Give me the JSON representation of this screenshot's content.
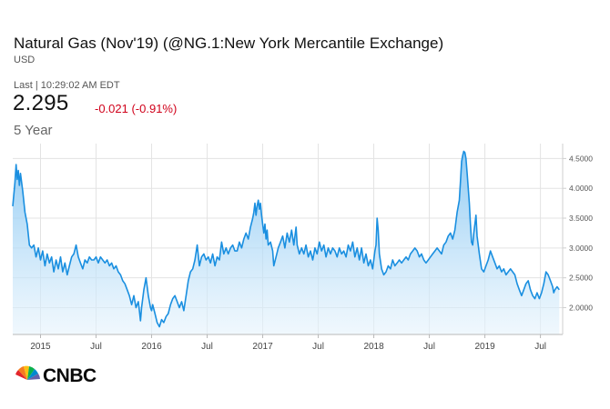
{
  "header": {
    "title": "Natural Gas (Nov'19) (@NG.1:New York Mercantile Exchange)",
    "currency": "USD",
    "last_label": "Last | 10:29:02 AM EDT",
    "price": "2.295",
    "change": "-0.021 (-0.91%)",
    "range": "5 Year"
  },
  "colors": {
    "line": "#1a8fe0",
    "change_negative": "#d0021b",
    "grid": "#e3e3e3"
  },
  "chart_data": {
    "type": "area",
    "title": "",
    "xlabel": "",
    "ylabel": "",
    "x_ticks": [
      {
        "t": 0.25,
        "label": "2015"
      },
      {
        "t": 0.75,
        "label": "Jul"
      },
      {
        "t": 1.25,
        "label": "2016"
      },
      {
        "t": 1.75,
        "label": "Jul"
      },
      {
        "t": 2.25,
        "label": "2017"
      },
      {
        "t": 2.75,
        "label": "Jul"
      },
      {
        "t": 3.25,
        "label": "2018"
      },
      {
        "t": 3.75,
        "label": "Jul"
      },
      {
        "t": 4.25,
        "label": "2019"
      },
      {
        "t": 4.75,
        "label": "Jul"
      }
    ],
    "y_ticks": [
      "2.0000",
      "2.5000",
      "3.0000",
      "3.5000",
      "4.0000",
      "4.5000"
    ],
    "ylim": [
      1.55,
      4.75
    ],
    "xlim": [
      0,
      4.95
    ],
    "grid": true,
    "series": [
      {
        "values": [
          [
            0.0,
            3.7
          ],
          [
            0.02,
            4.1
          ],
          [
            0.03,
            4.4
          ],
          [
            0.04,
            4.15
          ],
          [
            0.05,
            4.3
          ],
          [
            0.06,
            4.05
          ],
          [
            0.07,
            4.25
          ],
          [
            0.09,
            3.95
          ],
          [
            0.11,
            3.6
          ],
          [
            0.13,
            3.4
          ],
          [
            0.15,
            3.05
          ],
          [
            0.17,
            3.0
          ],
          [
            0.19,
            3.05
          ],
          [
            0.21,
            2.85
          ],
          [
            0.23,
            3.0
          ],
          [
            0.25,
            2.8
          ],
          [
            0.27,
            2.95
          ],
          [
            0.29,
            2.7
          ],
          [
            0.31,
            2.9
          ],
          [
            0.33,
            2.75
          ],
          [
            0.35,
            2.85
          ],
          [
            0.37,
            2.6
          ],
          [
            0.39,
            2.8
          ],
          [
            0.41,
            2.65
          ],
          [
            0.43,
            2.85
          ],
          [
            0.45,
            2.6
          ],
          [
            0.47,
            2.75
          ],
          [
            0.49,
            2.55
          ],
          [
            0.51,
            2.7
          ],
          [
            0.53,
            2.85
          ],
          [
            0.55,
            2.9
          ],
          [
            0.57,
            3.05
          ],
          [
            0.59,
            2.85
          ],
          [
            0.61,
            2.75
          ],
          [
            0.63,
            2.65
          ],
          [
            0.65,
            2.8
          ],
          [
            0.67,
            2.75
          ],
          [
            0.69,
            2.85
          ],
          [
            0.71,
            2.8
          ],
          [
            0.73,
            2.8
          ],
          [
            0.75,
            2.85
          ],
          [
            0.77,
            2.75
          ],
          [
            0.79,
            2.85
          ],
          [
            0.81,
            2.8
          ],
          [
            0.83,
            2.75
          ],
          [
            0.85,
            2.8
          ],
          [
            0.87,
            2.7
          ],
          [
            0.89,
            2.75
          ],
          [
            0.91,
            2.65
          ],
          [
            0.93,
            2.7
          ],
          [
            0.95,
            2.6
          ],
          [
            0.97,
            2.55
          ],
          [
            0.99,
            2.45
          ],
          [
            1.01,
            2.4
          ],
          [
            1.03,
            2.3
          ],
          [
            1.05,
            2.2
          ],
          [
            1.07,
            2.05
          ],
          [
            1.09,
            2.2
          ],
          [
            1.11,
            2.0
          ],
          [
            1.13,
            2.1
          ],
          [
            1.14,
            1.95
          ],
          [
            1.15,
            1.78
          ],
          [
            1.16,
            2.0
          ],
          [
            1.18,
            2.3
          ],
          [
            1.2,
            2.5
          ],
          [
            1.22,
            2.2
          ],
          [
            1.24,
            2.0
          ],
          [
            1.25,
            1.95
          ],
          [
            1.26,
            2.05
          ],
          [
            1.28,
            1.9
          ],
          [
            1.3,
            1.75
          ],
          [
            1.32,
            1.68
          ],
          [
            1.34,
            1.8
          ],
          [
            1.36,
            1.75
          ],
          [
            1.38,
            1.85
          ],
          [
            1.4,
            1.9
          ],
          [
            1.42,
            2.05
          ],
          [
            1.44,
            2.15
          ],
          [
            1.46,
            2.2
          ],
          [
            1.48,
            2.1
          ],
          [
            1.5,
            2.0
          ],
          [
            1.52,
            2.1
          ],
          [
            1.54,
            1.95
          ],
          [
            1.56,
            2.2
          ],
          [
            1.58,
            2.45
          ],
          [
            1.6,
            2.6
          ],
          [
            1.62,
            2.65
          ],
          [
            1.64,
            2.8
          ],
          [
            1.66,
            3.05
          ],
          [
            1.68,
            2.7
          ],
          [
            1.7,
            2.85
          ],
          [
            1.72,
            2.9
          ],
          [
            1.74,
            2.8
          ],
          [
            1.76,
            2.85
          ],
          [
            1.78,
            2.75
          ],
          [
            1.8,
            2.9
          ],
          [
            1.82,
            2.7
          ],
          [
            1.84,
            2.85
          ],
          [
            1.86,
            2.8
          ],
          [
            1.88,
            3.1
          ],
          [
            1.9,
            2.9
          ],
          [
            1.92,
            3.0
          ],
          [
            1.94,
            2.9
          ],
          [
            1.96,
            3.0
          ],
          [
            1.98,
            3.05
          ],
          [
            2.0,
            2.95
          ],
          [
            2.02,
            2.95
          ],
          [
            2.04,
            3.1
          ],
          [
            2.06,
            3.0
          ],
          [
            2.08,
            3.15
          ],
          [
            2.1,
            3.25
          ],
          [
            2.12,
            3.15
          ],
          [
            2.14,
            3.35
          ],
          [
            2.16,
            3.5
          ],
          [
            2.17,
            3.6
          ],
          [
            2.18,
            3.75
          ],
          [
            2.19,
            3.55
          ],
          [
            2.2,
            3.7
          ],
          [
            2.21,
            3.8
          ],
          [
            2.22,
            3.65
          ],
          [
            2.23,
            3.75
          ],
          [
            2.24,
            3.55
          ],
          [
            2.25,
            3.4
          ],
          [
            2.26,
            3.25
          ],
          [
            2.27,
            3.4
          ],
          [
            2.28,
            3.15
          ],
          [
            2.29,
            3.3
          ],
          [
            2.3,
            3.05
          ],
          [
            2.32,
            3.1
          ],
          [
            2.34,
            2.95
          ],
          [
            2.35,
            2.7
          ],
          [
            2.37,
            2.85
          ],
          [
            2.39,
            3.0
          ],
          [
            2.41,
            3.1
          ],
          [
            2.43,
            3.2
          ],
          [
            2.45,
            3.0
          ],
          [
            2.47,
            3.25
          ],
          [
            2.49,
            3.1
          ],
          [
            2.51,
            3.3
          ],
          [
            2.53,
            3.05
          ],
          [
            2.55,
            3.35
          ],
          [
            2.56,
            3.05
          ],
          [
            2.58,
            2.9
          ],
          [
            2.6,
            3.0
          ],
          [
            2.62,
            2.9
          ],
          [
            2.64,
            3.05
          ],
          [
            2.66,
            2.85
          ],
          [
            2.68,
            2.95
          ],
          [
            2.7,
            2.8
          ],
          [
            2.72,
            3.0
          ],
          [
            2.74,
            2.9
          ],
          [
            2.76,
            3.1
          ],
          [
            2.78,
            2.95
          ],
          [
            2.8,
            3.05
          ],
          [
            2.82,
            2.85
          ],
          [
            2.84,
            3.0
          ],
          [
            2.86,
            2.9
          ],
          [
            2.88,
            3.0
          ],
          [
            2.9,
            2.95
          ],
          [
            2.92,
            2.85
          ],
          [
            2.94,
            3.0
          ],
          [
            2.96,
            2.9
          ],
          [
            2.98,
            2.95
          ],
          [
            3.0,
            2.85
          ],
          [
            3.02,
            3.05
          ],
          [
            3.04,
            2.95
          ],
          [
            3.06,
            3.1
          ],
          [
            3.08,
            2.85
          ],
          [
            3.1,
            3.0
          ],
          [
            3.12,
            2.8
          ],
          [
            3.14,
            3.0
          ],
          [
            3.16,
            2.75
          ],
          [
            3.18,
            2.9
          ],
          [
            3.2,
            2.7
          ],
          [
            3.22,
            2.8
          ],
          [
            3.24,
            2.65
          ],
          [
            3.26,
            2.95
          ],
          [
            3.27,
            3.05
          ],
          [
            3.28,
            3.5
          ],
          [
            3.29,
            3.3
          ],
          [
            3.3,
            2.9
          ],
          [
            3.32,
            2.65
          ],
          [
            3.34,
            2.55
          ],
          [
            3.36,
            2.6
          ],
          [
            3.38,
            2.7
          ],
          [
            3.4,
            2.65
          ],
          [
            3.42,
            2.8
          ],
          [
            3.44,
            2.7
          ],
          [
            3.46,
            2.75
          ],
          [
            3.48,
            2.8
          ],
          [
            3.5,
            2.75
          ],
          [
            3.52,
            2.8
          ],
          [
            3.54,
            2.85
          ],
          [
            3.56,
            2.8
          ],
          [
            3.58,
            2.9
          ],
          [
            3.6,
            2.95
          ],
          [
            3.62,
            3.0
          ],
          [
            3.64,
            2.95
          ],
          [
            3.66,
            2.85
          ],
          [
            3.68,
            2.9
          ],
          [
            3.7,
            2.8
          ],
          [
            3.72,
            2.75
          ],
          [
            3.74,
            2.8
          ],
          [
            3.76,
            2.85
          ],
          [
            3.78,
            2.9
          ],
          [
            3.8,
            2.95
          ],
          [
            3.82,
            3.0
          ],
          [
            3.84,
            2.95
          ],
          [
            3.86,
            2.9
          ],
          [
            3.88,
            3.05
          ],
          [
            3.9,
            3.1
          ],
          [
            3.92,
            3.2
          ],
          [
            3.94,
            3.25
          ],
          [
            3.96,
            3.15
          ],
          [
            3.98,
            3.3
          ],
          [
            4.0,
            3.6
          ],
          [
            4.02,
            3.8
          ],
          [
            4.03,
            4.1
          ],
          [
            4.04,
            4.45
          ],
          [
            4.05,
            4.55
          ],
          [
            4.06,
            4.62
          ],
          [
            4.07,
            4.6
          ],
          [
            4.08,
            4.5
          ],
          [
            4.09,
            4.25
          ],
          [
            4.1,
            4.0
          ],
          [
            4.11,
            3.75
          ],
          [
            4.12,
            3.4
          ],
          [
            4.13,
            3.1
          ],
          [
            4.14,
            3.05
          ],
          [
            4.15,
            3.25
          ],
          [
            4.16,
            3.4
          ],
          [
            4.17,
            3.55
          ],
          [
            4.18,
            3.2
          ],
          [
            4.2,
            2.9
          ],
          [
            4.22,
            2.65
          ],
          [
            4.24,
            2.6
          ],
          [
            4.26,
            2.7
          ],
          [
            4.28,
            2.8
          ],
          [
            4.3,
            2.95
          ],
          [
            4.32,
            2.85
          ],
          [
            4.34,
            2.75
          ],
          [
            4.36,
            2.65
          ],
          [
            4.38,
            2.7
          ],
          [
            4.4,
            2.6
          ],
          [
            4.42,
            2.65
          ],
          [
            4.44,
            2.55
          ],
          [
            4.46,
            2.6
          ],
          [
            4.48,
            2.65
          ],
          [
            4.5,
            2.6
          ],
          [
            4.52,
            2.55
          ],
          [
            4.54,
            2.4
          ],
          [
            4.56,
            2.3
          ],
          [
            4.58,
            2.2
          ],
          [
            4.6,
            2.3
          ],
          [
            4.62,
            2.4
          ],
          [
            4.64,
            2.45
          ],
          [
            4.66,
            2.3
          ],
          [
            4.68,
            2.2
          ],
          [
            4.7,
            2.15
          ],
          [
            4.72,
            2.25
          ],
          [
            4.74,
            2.15
          ],
          [
            4.76,
            2.25
          ],
          [
            4.78,
            2.4
          ],
          [
            4.8,
            2.6
          ],
          [
            4.82,
            2.55
          ],
          [
            4.84,
            2.45
          ],
          [
            4.86,
            2.35
          ],
          [
            4.87,
            2.25
          ],
          [
            4.88,
            2.3
          ],
          [
            4.9,
            2.35
          ],
          [
            4.92,
            2.3
          ]
        ]
      }
    ]
  },
  "logo": {
    "text": "CNBC"
  }
}
